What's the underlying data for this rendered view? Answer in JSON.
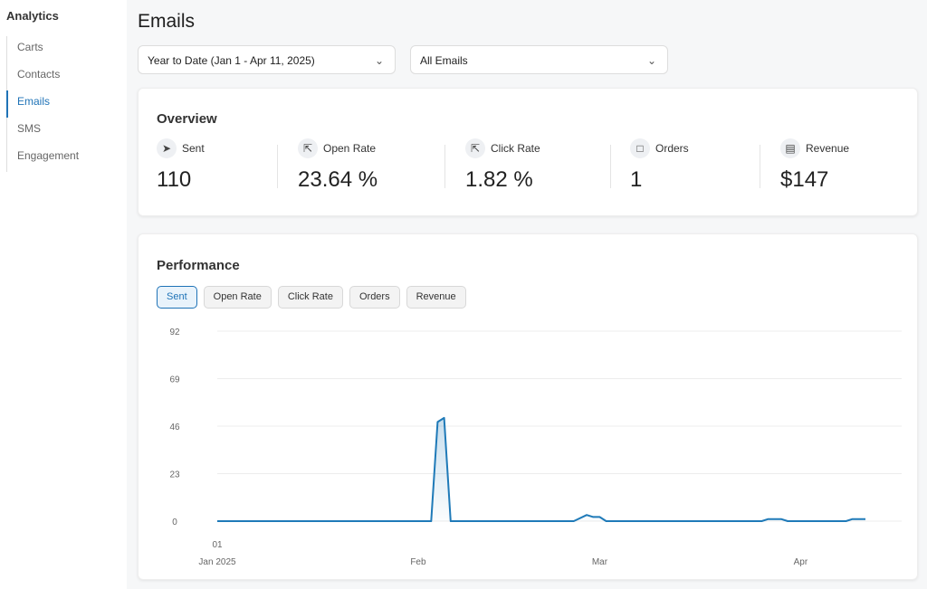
{
  "sidebar": {
    "title": "Analytics",
    "items": [
      {
        "label": "Carts"
      },
      {
        "label": "Contacts"
      },
      {
        "label": "Emails",
        "active": true
      },
      {
        "label": "SMS"
      },
      {
        "label": "Engagement"
      }
    ]
  },
  "page": {
    "title": "Emails"
  },
  "filters": {
    "date_range": "Year to Date (Jan 1 - Apr 11, 2025)",
    "email_filter": "All Emails"
  },
  "overview": {
    "title": "Overview",
    "metrics": [
      {
        "label": "Sent",
        "value": "110",
        "icon": "send-icon"
      },
      {
        "label": "Open Rate",
        "value": "23.64 %",
        "icon": "cursor-open-icon"
      },
      {
        "label": "Click Rate",
        "value": "1.82 %",
        "icon": "cursor-click-icon"
      },
      {
        "label": "Orders",
        "value": "1",
        "icon": "box-icon"
      },
      {
        "label": "Revenue",
        "value": "$147",
        "icon": "receipt-icon"
      }
    ]
  },
  "performance": {
    "title": "Performance",
    "tabs": [
      {
        "label": "Sent",
        "active": true
      },
      {
        "label": "Open Rate"
      },
      {
        "label": "Click Rate"
      },
      {
        "label": "Orders"
      },
      {
        "label": "Revenue"
      }
    ]
  },
  "chart_data": {
    "type": "area",
    "series_color": "#1f7ab8",
    "grid": true,
    "ylim": [
      0,
      92
    ],
    "yticks": [
      "0",
      "23",
      "46",
      "69",
      "92"
    ],
    "xlim": [
      "2025-01-01",
      "2025-04-11"
    ],
    "xticks": [
      {
        "label": "01",
        "sub": "Jan 2025",
        "date": "2025-01-01"
      },
      {
        "label": "Feb",
        "date": "2025-02-01"
      },
      {
        "label": "Mar",
        "date": "2025-03-01"
      },
      {
        "label": "Apr",
        "date": "2025-04-01"
      }
    ],
    "points": [
      {
        "x": "2025-01-01",
        "y": 0
      },
      {
        "x": "2025-02-03",
        "y": 0
      },
      {
        "x": "2025-02-04",
        "y": 48
      },
      {
        "x": "2025-02-05",
        "y": 50
      },
      {
        "x": "2025-02-06",
        "y": 0
      },
      {
        "x": "2025-02-25",
        "y": 0
      },
      {
        "x": "2025-02-27",
        "y": 3
      },
      {
        "x": "2025-02-28",
        "y": 2
      },
      {
        "x": "2025-03-01",
        "y": 2
      },
      {
        "x": "2025-03-02",
        "y": 0
      },
      {
        "x": "2025-03-26",
        "y": 0
      },
      {
        "x": "2025-03-27",
        "y": 1
      },
      {
        "x": "2025-03-28",
        "y": 1
      },
      {
        "x": "2025-03-29",
        "y": 1
      },
      {
        "x": "2025-03-30",
        "y": 0
      },
      {
        "x": "2025-04-08",
        "y": 0
      },
      {
        "x": "2025-04-09",
        "y": 1
      },
      {
        "x": "2025-04-10",
        "y": 1
      },
      {
        "x": "2025-04-11",
        "y": 1
      }
    ]
  }
}
